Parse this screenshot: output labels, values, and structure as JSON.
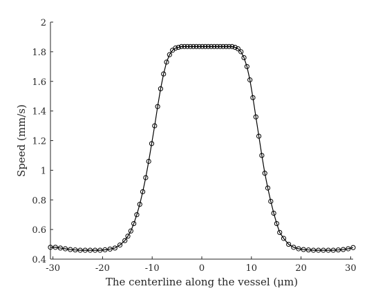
{
  "chart_data": {
    "type": "line",
    "title": "",
    "xlabel": "The centerline along the vessel (μm)",
    "ylabel": "Speed (mm/s)",
    "xlim": [
      -30.5,
      30.5
    ],
    "ylim": [
      0.4,
      2.0
    ],
    "xticks": [
      -30,
      -20,
      -10,
      0,
      10,
      20,
      30
    ],
    "xtick_labels": [
      "-30",
      "-20",
      "-10",
      "0",
      "10",
      "20",
      "30"
    ],
    "yticks": [
      0.4,
      0.6,
      0.8,
      1.0,
      1.2,
      1.4,
      1.6,
      1.8,
      2.0
    ],
    "ytick_labels": [
      "0.4",
      "0.6",
      "0.8",
      "1",
      "1.2",
      "1.4",
      "1.6",
      "1.8",
      "2"
    ],
    "grid": false,
    "box": false,
    "series": [
      {
        "marker": "circle",
        "line": "solid",
        "color": "#000000",
        "x": [
          -30.5,
          -29.5,
          -28.5,
          -27.5,
          -26.5,
          -25.5,
          -24.5,
          -23.5,
          -22.5,
          -21.5,
          -20.5,
          -19.5,
          -18.5,
          -17.5,
          -16.5,
          -15.5,
          -14.9,
          -14.3,
          -13.7,
          -13.1,
          -12.5,
          -11.9,
          -11.3,
          -10.7,
          -10.1,
          -9.5,
          -8.9,
          -8.3,
          -7.7,
          -7.1,
          -6.5,
          -5.9,
          -5.3,
          -4.7,
          -4.1,
          -3.5,
          -2.9,
          -2.3,
          -1.7,
          -1.1,
          -0.5,
          0.1,
          0.7,
          1.3,
          1.9,
          2.5,
          3.1,
          3.7,
          4.3,
          4.9,
          5.5,
          6.1,
          6.7,
          7.3,
          7.9,
          8.5,
          9.1,
          9.7,
          10.3,
          10.9,
          11.5,
          12.1,
          12.7,
          13.3,
          13.9,
          14.5,
          15.1,
          15.7,
          16.5,
          17.5,
          18.5,
          19.5,
          20.5,
          21.5,
          22.5,
          23.5,
          24.5,
          25.5,
          26.5,
          27.5,
          28.5,
          29.5,
          30.5
        ],
        "y": [
          0.48,
          0.48,
          0.475,
          0.47,
          0.465,
          0.462,
          0.46,
          0.46,
          0.46,
          0.46,
          0.46,
          0.463,
          0.468,
          0.475,
          0.495,
          0.525,
          0.555,
          0.59,
          0.64,
          0.7,
          0.77,
          0.855,
          0.95,
          1.06,
          1.18,
          1.3,
          1.43,
          1.55,
          1.65,
          1.73,
          1.78,
          1.81,
          1.825,
          1.83,
          1.835,
          1.835,
          1.835,
          1.835,
          1.835,
          1.835,
          1.835,
          1.835,
          1.835,
          1.835,
          1.835,
          1.835,
          1.835,
          1.835,
          1.835,
          1.835,
          1.835,
          1.835,
          1.83,
          1.82,
          1.8,
          1.76,
          1.7,
          1.61,
          1.49,
          1.36,
          1.23,
          1.1,
          0.98,
          0.88,
          0.79,
          0.71,
          0.64,
          0.58,
          0.54,
          0.5,
          0.48,
          0.47,
          0.465,
          0.462,
          0.46,
          0.46,
          0.46,
          0.46,
          0.46,
          0.462,
          0.465,
          0.47,
          0.478
        ]
      }
    ]
  }
}
